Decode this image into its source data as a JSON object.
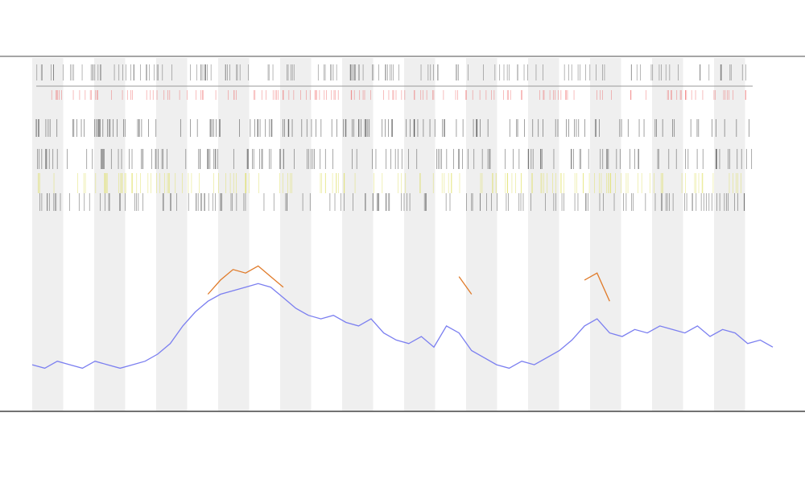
{
  "chart_data": {
    "type": "line",
    "x": [
      0,
      1,
      2,
      3,
      4,
      5,
      6,
      7,
      8,
      9,
      10,
      11,
      12,
      13,
      14,
      15,
      16,
      17,
      18,
      19,
      20,
      21,
      22,
      23,
      24,
      25,
      26,
      27,
      28,
      29,
      30,
      31,
      32,
      33,
      34,
      35,
      36,
      37,
      38,
      39,
      40,
      41,
      42,
      43,
      44,
      45,
      46,
      47,
      48,
      49,
      50,
      51,
      52,
      53,
      54,
      55,
      56,
      57,
      58,
      59
    ],
    "xlim": [
      0,
      59
    ],
    "ylim": [
      0,
      100
    ],
    "series": [
      {
        "color": "#7b7ff0",
        "values": [
          13,
          12,
          14,
          13,
          12,
          14,
          13,
          12,
          13,
          14,
          16,
          19,
          24,
          28,
          31,
          33,
          34,
          35,
          36,
          35,
          32,
          29,
          27,
          26,
          27,
          25,
          24,
          26,
          22,
          20,
          19,
          21,
          18,
          24,
          22,
          17,
          15,
          13,
          12,
          14,
          13,
          15,
          17,
          20,
          24,
          26,
          22,
          21,
          23,
          22,
          24,
          23,
          22,
          24,
          21,
          23,
          22,
          19,
          20,
          18
        ]
      },
      {
        "color": "#e07b2a",
        "values": [
          null,
          null,
          null,
          null,
          null,
          null,
          null,
          null,
          null,
          null,
          null,
          null,
          null,
          null,
          33,
          37,
          40,
          39,
          41,
          38,
          35,
          null,
          null,
          null,
          null,
          null,
          null,
          null,
          null,
          null,
          null,
          null,
          null,
          null,
          38,
          33,
          null,
          null,
          null,
          null,
          null,
          null,
          null,
          null,
          37,
          39,
          31,
          null,
          null,
          null,
          null,
          null,
          null,
          null,
          null,
          null,
          null,
          null,
          null,
          null
        ]
      }
    ]
  }
}
